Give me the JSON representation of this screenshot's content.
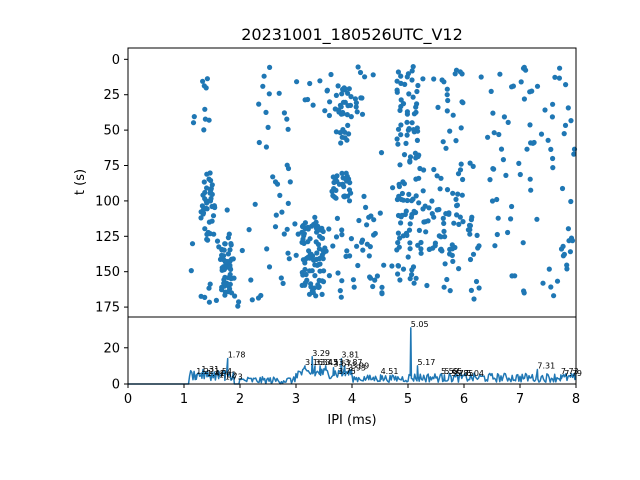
{
  "title": "20231001_180526UTC_V12",
  "colors": {
    "series": "#1f77b4",
    "axes": "#000000",
    "background": "#ffffff"
  },
  "chart_data": [
    {
      "id": "raster",
      "type": "scatter",
      "title": "20231001_180526UTC_V12",
      "xlabel": "",
      "ylabel": "t (s)",
      "xlim": [
        0,
        8
      ],
      "ylim": [
        182,
        -8
      ],
      "y_inverted": true,
      "yticks": [
        0,
        25,
        50,
        75,
        100,
        125,
        150,
        175
      ],
      "grid": false,
      "clusters": [
        {
          "x": [
            1.1,
            1.5
          ],
          "y": [
            5,
            50
          ],
          "n": 10
        },
        {
          "x": [
            1.3,
            1.55
          ],
          "y": [
            80,
            130
          ],
          "n": 40
        },
        {
          "x": [
            1.65,
            1.9
          ],
          "y": [
            130,
            165
          ],
          "n": 50
        },
        {
          "x": [
            1.1,
            2.3
          ],
          "y": [
            100,
            175
          ],
          "n": 25
        },
        {
          "x": [
            2.3,
            3.0
          ],
          "y": [
            5,
            170
          ],
          "n": 35
        },
        {
          "x": [
            3.1,
            3.5
          ],
          "y": [
            115,
            168
          ],
          "n": 70
        },
        {
          "x": [
            3.7,
            4.0
          ],
          "y": [
            20,
            60
          ],
          "n": 30
        },
        {
          "x": [
            3.6,
            4.0
          ],
          "y": [
            80,
            100
          ],
          "n": 30
        },
        {
          "x": [
            3.0,
            4.2
          ],
          "y": [
            5,
            40
          ],
          "n": 25
        },
        {
          "x": [
            3.0,
            4.5
          ],
          "y": [
            110,
            170
          ],
          "n": 50
        },
        {
          "x": [
            4.8,
            5.2
          ],
          "y": [
            5,
            165
          ],
          "n": 80
        },
        {
          "x": [
            4.2,
            5.8
          ],
          "y": [
            5,
            170
          ],
          "n": 60
        },
        {
          "x": [
            5.2,
            6.2
          ],
          "y": [
            100,
            140
          ],
          "n": 40
        },
        {
          "x": [
            5.5,
            8.0
          ],
          "y": [
            5,
            170
          ],
          "n": 130
        }
      ]
    },
    {
      "id": "histogram",
      "type": "line",
      "xlabel": "IPI (ms)",
      "ylabel": "",
      "xlim": [
        0,
        8
      ],
      "ylim": [
        0,
        37
      ],
      "xticks": [
        0,
        1,
        2,
        3,
        4,
        5,
        6,
        7,
        8
      ],
      "yticks": [
        0,
        20
      ],
      "grid": false,
      "peaks": [
        {
          "x": 1.22,
          "y": 5,
          "label": "1.22"
        },
        {
          "x": 1.31,
          "y": 6,
          "label": "1.31"
        },
        {
          "x": 1.41,
          "y": 4,
          "label": "1.41"
        },
        {
          "x": 1.54,
          "y": 5,
          "label": "1.54"
        },
        {
          "x": 1.62,
          "y": 3,
          "label": "1.62"
        },
        {
          "x": 1.73,
          "y": 2,
          "label": "1.73"
        },
        {
          "x": 1.78,
          "y": 14,
          "label": "1.78"
        },
        {
          "x": 3.16,
          "y": 10,
          "label": "3.16"
        },
        {
          "x": 3.29,
          "y": 15,
          "label": "3.29"
        },
        {
          "x": 3.34,
          "y": 10,
          "label": "3.34"
        },
        {
          "x": 3.43,
          "y": 10,
          "label": "3.43"
        },
        {
          "x": 3.53,
          "y": 10,
          "label": "3.53"
        },
        {
          "x": 3.67,
          "y": 9,
          "label": "3.67"
        },
        {
          "x": 3.75,
          "y": 5,
          "label": "3.75"
        },
        {
          "x": 3.81,
          "y": 14,
          "label": "3.81"
        },
        {
          "x": 3.87,
          "y": 10,
          "label": "3.87"
        },
        {
          "x": 3.93,
          "y": 7,
          "label": "3.93"
        },
        {
          "x": 3.99,
          "y": 8,
          "label": "3.99"
        },
        {
          "x": 4.51,
          "y": 5,
          "label": "4.51"
        },
        {
          "x": 5.05,
          "y": 31,
          "label": "5.05"
        },
        {
          "x": 5.17,
          "y": 10,
          "label": "5.17"
        },
        {
          "x": 5.59,
          "y": 5,
          "label": "5.59"
        },
        {
          "x": 5.65,
          "y": 5,
          "label": "5.65"
        },
        {
          "x": 5.77,
          "y": 4,
          "label": "5.77"
        },
        {
          "x": 5.85,
          "y": 4,
          "label": "5.85"
        },
        {
          "x": 6.04,
          "y": 4,
          "label": "6.04"
        },
        {
          "x": 7.31,
          "y": 8,
          "label": "7.31"
        },
        {
          "x": 7.73,
          "y": 5,
          "label": "7.73"
        },
        {
          "x": 7.79,
          "y": 4,
          "label": "7.79"
        }
      ],
      "clusters": [
        {
          "x": [
            1.1,
            1.9
          ],
          "y": [
            2,
            8
          ]
        },
        {
          "x": [
            2.0,
            3.0
          ],
          "y": [
            0,
            4
          ]
        },
        {
          "x": [
            3.0,
            4.0
          ],
          "y": [
            3,
            9
          ]
        },
        {
          "x": [
            4.0,
            5.0
          ],
          "y": [
            1,
            5
          ]
        },
        {
          "x": [
            5.0,
            8.0
          ],
          "y": [
            1,
            6
          ]
        }
      ]
    }
  ]
}
